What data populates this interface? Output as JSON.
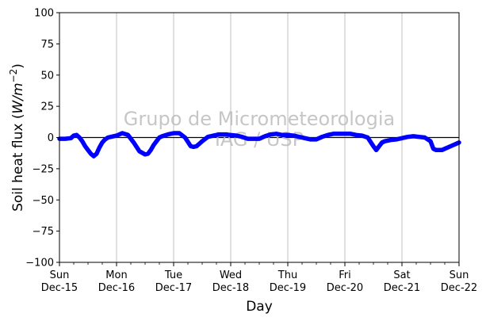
{
  "chart_data": {
    "type": "line",
    "title": "",
    "xlabel": "Day",
    "ylabel": "Soil heat flux (W/m⁻²)",
    "ylabel_parts": {
      "prefix": "Soil heat flux (",
      "unit_base": "W/m",
      "unit_exp": "−2",
      "suffix": ")"
    },
    "ylim": [
      -100,
      100
    ],
    "yticks": [
      {
        "value": 100,
        "label": "100"
      },
      {
        "value": 75,
        "label": "75"
      },
      {
        "value": 50,
        "label": "50"
      },
      {
        "value": 25,
        "label": "25"
      },
      {
        "value": 0,
        "label": "0"
      },
      {
        "value": -25,
        "label": "−25"
      },
      {
        "value": -50,
        "label": "−50"
      },
      {
        "value": -75,
        "label": "−75"
      },
      {
        "value": -100,
        "label": "−100"
      }
    ],
    "xlim_days": [
      0,
      7
    ],
    "xticks": [
      {
        "day": 0,
        "weekday": "Sun",
        "date": "Dec-15"
      },
      {
        "day": 1,
        "weekday": "Mon",
        "date": "Dec-16"
      },
      {
        "day": 2,
        "weekday": "Tue",
        "date": "Dec-17"
      },
      {
        "day": 3,
        "weekday": "Wed",
        "date": "Dec-18"
      },
      {
        "day": 4,
        "weekday": "Thu",
        "date": "Dec-19"
      },
      {
        "day": 5,
        "weekday": "Fri",
        "date": "Dec-20"
      },
      {
        "day": 6,
        "weekday": "Sat",
        "date": "Dec-21"
      },
      {
        "day": 7,
        "weekday": "Sun",
        "date": "Dec-22"
      }
    ],
    "grid": "vertical",
    "zero_line": true,
    "series": [
      {
        "color": "#0000ff",
        "x": [
          0,
          0.1,
          0.2,
          0.25,
          0.3,
          0.35,
          0.4,
          0.45,
          0.5,
          0.55,
          0.6,
          0.65,
          0.7,
          0.75,
          0.8,
          0.85,
          0.9,
          1.0,
          1.1,
          1.2,
          1.3,
          1.4,
          1.5,
          1.55,
          1.6,
          1.65,
          1.7,
          1.75,
          1.8,
          1.9,
          2.0,
          2.1,
          2.2,
          2.3,
          2.35,
          2.4,
          2.45,
          2.5,
          2.6,
          2.7,
          2.8,
          2.9,
          3.0,
          3.1,
          3.2,
          3.3,
          3.4,
          3.5,
          3.6,
          3.7,
          3.8,
          3.9,
          4.0,
          4.1,
          4.2,
          4.3,
          4.4,
          4.5,
          4.6,
          4.7,
          4.8,
          4.9,
          5.0,
          5.1,
          5.2,
          5.3,
          5.4,
          5.5,
          5.55,
          5.6,
          5.65,
          5.7,
          5.8,
          5.9,
          6.0,
          6.1,
          6.2,
          6.3,
          6.4,
          6.5,
          6.55,
          6.6,
          6.7,
          6.8,
          6.9,
          7.0
        ],
        "y": [
          -1,
          -1,
          -0.5,
          1.5,
          2,
          0,
          -3,
          -7,
          -10,
          -13,
          -15,
          -13,
          -8,
          -4,
          -1.5,
          0,
          0.5,
          1.5,
          3.5,
          2,
          -4,
          -11,
          -13.5,
          -13,
          -10,
          -6,
          -3,
          0,
          1,
          2.5,
          3.5,
          3.5,
          0,
          -7,
          -7.5,
          -7,
          -5,
          -3,
          0.5,
          1.5,
          2.5,
          2.5,
          2,
          1.5,
          0.5,
          -1,
          -1,
          -1,
          1,
          2.5,
          3,
          2,
          2,
          1.5,
          0.5,
          -0.5,
          -1.5,
          -1.5,
          0.5,
          2,
          3,
          3,
          3,
          3,
          2,
          1.5,
          0,
          -7,
          -10,
          -7,
          -4,
          -3,
          -2,
          -1.5,
          -0.5,
          0.5,
          1,
          0.5,
          0,
          -3,
          -9,
          -10,
          -10,
          -8,
          -6,
          -4
        ]
      }
    ],
    "watermark": {
      "line1": "Grupo de Micrometeorologia",
      "line2": "IAG / USP"
    }
  }
}
